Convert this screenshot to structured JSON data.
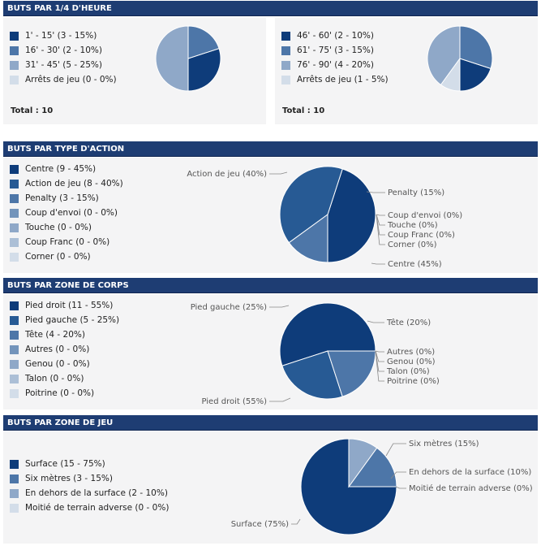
{
  "colors": [
    "#0e3c7a",
    "#275a94",
    "#4d76a8",
    "#7394bb",
    "#8fa8c8",
    "#acbfd6",
    "#d3dde9"
  ],
  "sections": {
    "quarter": {
      "title": "BUTS PAR 1/4 D'HEURE"
    },
    "action": {
      "title": "BUTS PAR TYPE D'ACTION"
    },
    "body": {
      "title": "BUTS PAR ZONE DE CORPS"
    },
    "field": {
      "title": "BUTS PAR ZONE DE JEU"
    }
  },
  "chart_data": [
    {
      "type": "pie",
      "title": "BUTS PAR 1/4 D'HEURE",
      "labels": [
        "1' - 15'",
        "16' - 30'",
        "31' - 45'",
        "Arrêts de jeu"
      ],
      "values": [
        3,
        2,
        5,
        0
      ],
      "percents": [
        15,
        10,
        25,
        0
      ],
      "colors": [
        "#0e3c7a",
        "#4d76a8",
        "#8fa8c8",
        "#d3dde9"
      ],
      "legend": [
        "1' - 15' (3 - 15%)",
        "16' - 30' (2 - 10%)",
        "31' - 45' (5 - 25%)",
        "Arrêts de jeu (0 - 0%)"
      ],
      "total": "Total : 10"
    },
    {
      "type": "pie",
      "title": "BUTS PAR 1/4 D'HEURE",
      "labels": [
        "46' - 60'",
        "61' - 75'",
        "76' - 90'",
        "Arrêts de jeu"
      ],
      "values": [
        2,
        3,
        4,
        1
      ],
      "percents": [
        10,
        15,
        20,
        5
      ],
      "colors": [
        "#0e3c7a",
        "#4d76a8",
        "#8fa8c8",
        "#d3dde9"
      ],
      "legend": [
        "46' - 60' (2 - 10%)",
        "61' - 75' (3 - 15%)",
        "76' - 90' (4 - 20%)",
        "Arrêts de jeu (1 - 5%)"
      ],
      "total": "Total : 10"
    },
    {
      "type": "pie",
      "title": "BUTS PAR TYPE D'ACTION",
      "labels": [
        "Centre",
        "Action de jeu",
        "Penalty",
        "Coup d'envoi",
        "Touche",
        "Coup Franc",
        "Corner"
      ],
      "values": [
        9,
        8,
        3,
        0,
        0,
        0,
        0
      ],
      "percents": [
        45,
        40,
        15,
        0,
        0,
        0,
        0
      ],
      "colors": [
        "#0e3c7a",
        "#275a94",
        "#4d76a8",
        "#7394bb",
        "#8fa8c8",
        "#acbfd6",
        "#d3dde9"
      ],
      "legend": [
        "Centre (9 - 45%)",
        "Action de jeu (8 - 40%)",
        "Penalty (3 - 15%)",
        "Coup d'envoi (0 - 0%)",
        "Touche (0 - 0%)",
        "Coup Franc (0 - 0%)",
        "Corner (0 - 0%)"
      ],
      "slice_labels": [
        "Centre (45%)",
        "Action de jeu (40%)",
        "Penalty (15%)",
        "Coup d'envoi (0%)",
        "Touche (0%)",
        "Coup Franc (0%)",
        "Corner (0%)"
      ]
    },
    {
      "type": "pie",
      "title": "BUTS PAR ZONE DE CORPS",
      "labels": [
        "Pied droit",
        "Pied gauche",
        "Tête",
        "Autres",
        "Genou",
        "Talon",
        "Poitrine"
      ],
      "values": [
        11,
        5,
        4,
        0,
        0,
        0,
        0
      ],
      "percents": [
        55,
        25,
        20,
        0,
        0,
        0,
        0
      ],
      "colors": [
        "#0e3c7a",
        "#275a94",
        "#4d76a8",
        "#7394bb",
        "#8fa8c8",
        "#acbfd6",
        "#d3dde9"
      ],
      "legend": [
        "Pied droit (11 - 55%)",
        "Pied gauche (5 - 25%)",
        "Tête (4 - 20%)",
        "Autres (0 - 0%)",
        "Genou (0 - 0%)",
        "Talon (0 - 0%)",
        "Poitrine (0 - 0%)"
      ],
      "slice_labels": [
        "Pied droit (55%)",
        "Pied gauche (25%)",
        "Tête (20%)",
        "Autres (0%)",
        "Genou (0%)",
        "Talon (0%)",
        "Poitrine (0%)"
      ]
    },
    {
      "type": "pie",
      "title": "BUTS PAR ZONE DE JEU",
      "labels": [
        "Surface",
        "Six mètres",
        "En dehors de la surface",
        "Moitié de terrain adverse"
      ],
      "values": [
        15,
        3,
        2,
        0
      ],
      "percents": [
        75,
        15,
        10,
        0
      ],
      "colors": [
        "#0e3c7a",
        "#4d76a8",
        "#8fa8c8",
        "#d3dde9"
      ],
      "legend": [
        "Surface (15 - 75%)",
        "Six mètres (3 - 15%)",
        "En dehors de la surface (2 - 10%)",
        "Moitié de terrain adverse (0 - 0%)"
      ],
      "slice_labels": [
        "Surface (75%)",
        "Six mètres (15%)",
        "En dehors de la surface (10%)",
        "Moitié de terrain adverse (0%)"
      ]
    }
  ]
}
